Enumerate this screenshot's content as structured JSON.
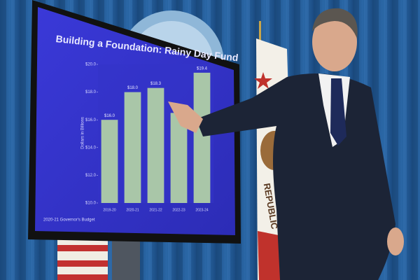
{
  "chart_data": {
    "type": "bar",
    "title": "Building a Foundation: Rainy Day Fund",
    "y_label": "Dollars in Billions",
    "footnote": "2020-21 Governor's Budget",
    "categories": [
      "2019-20",
      "2020-21",
      "2021-22",
      "2022-23",
      "2023-24"
    ],
    "values": [
      16.0,
      18.0,
      18.3,
      16.5,
      19.4
    ],
    "value_labels": [
      "$16.0",
      "$18.0",
      "$18.3",
      null,
      "$19.4"
    ],
    "color": "#a9c6a8",
    "ylim": [
      10,
      20
    ],
    "yticks": [
      {
        "value": 10,
        "label": "$10.0"
      },
      {
        "value": 12,
        "label": "$12.0"
      },
      {
        "value": 14,
        "label": "$14.0"
      },
      {
        "value": 16,
        "label": "$16.0"
      },
      {
        "value": 18,
        "label": "$18.0"
      },
      {
        "value": 20,
        "label": "$20.0"
      }
    ],
    "grid": false
  },
  "scene": {
    "flag_text": "REPUBLIC"
  }
}
